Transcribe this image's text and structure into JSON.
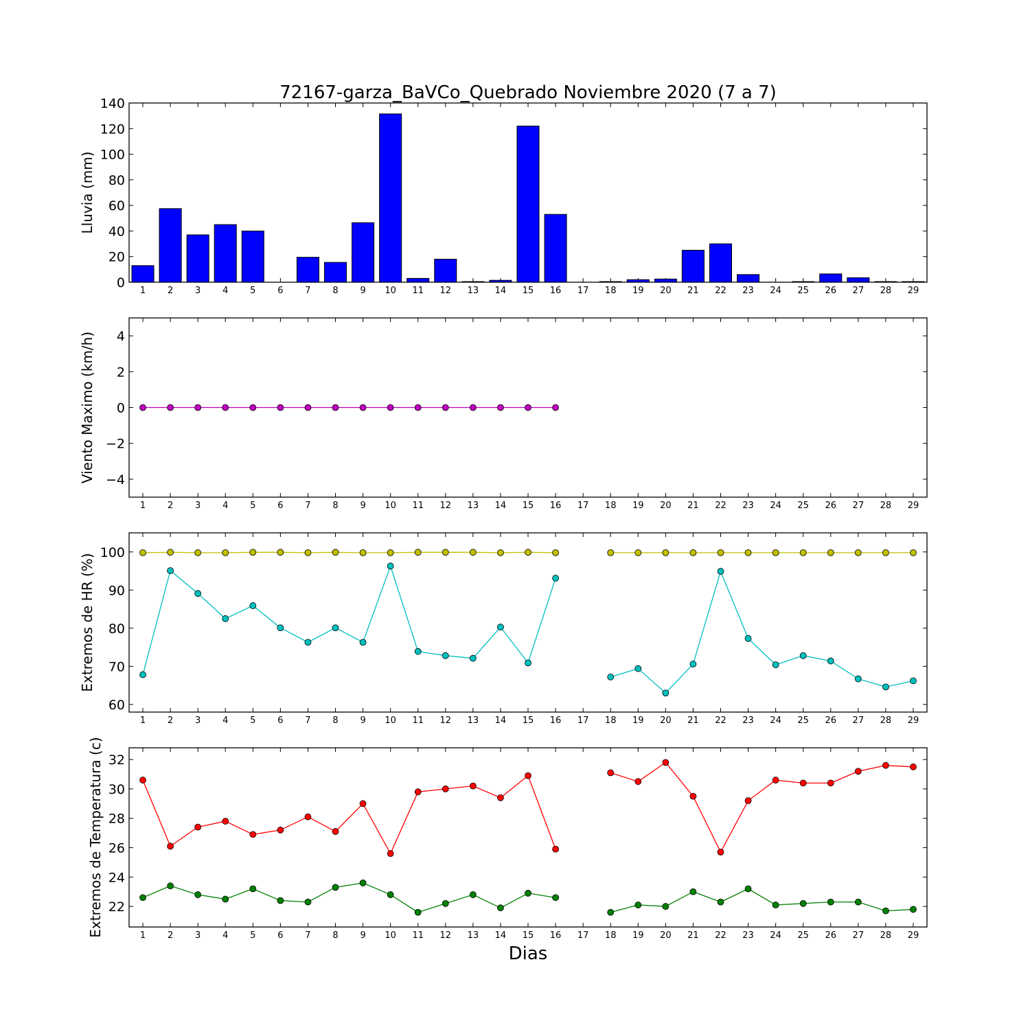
{
  "chart_data": {
    "title": "72167-garza_BaVCo_Quebrado Noviembre 2020  (7 a 7)",
    "xlabel": "Dias",
    "days": [
      1,
      2,
      3,
      4,
      5,
      6,
      7,
      8,
      9,
      10,
      11,
      12,
      13,
      14,
      15,
      16,
      17,
      18,
      19,
      20,
      21,
      22,
      23,
      24,
      25,
      26,
      27,
      28,
      29
    ],
    "panels": [
      {
        "type": "bar",
        "ylabel": "Lluvia (mm)",
        "ylim": [
          0,
          140
        ],
        "yticks": [
          0,
          20,
          40,
          60,
          80,
          100,
          120,
          140
        ],
        "colors": {
          "fill": "#0000ff"
        },
        "series": [
          {
            "values": [
              13,
              57.5,
              37,
              45,
              40,
              0,
              19.5,
              15.5,
              46.5,
              131.5,
              3,
              18,
              0.5,
              1.5,
              122,
              53,
              0,
              0.5,
              2,
              2.5,
              25,
              30,
              6,
              0,
              0.5,
              6.5,
              3.5,
              0.5,
              0.5
            ]
          }
        ]
      },
      {
        "type": "line",
        "ylabel": "Viento Maximo (km/h)",
        "ylim": [
          -5,
          5
        ],
        "yticks": [
          -4,
          -2,
          0,
          2,
          4
        ],
        "ytick_labels": [
          "−4",
          "−2",
          "0",
          "2",
          "4"
        ],
        "series": [
          {
            "color": "#bf00bf",
            "values": [
              0,
              0,
              0,
              0,
              0,
              0,
              0,
              0,
              0,
              0,
              0,
              0,
              0,
              0,
              0,
              0,
              null,
              null,
              null,
              null,
              null,
              null,
              null,
              null,
              null,
              null,
              null,
              null,
              null
            ]
          }
        ]
      },
      {
        "type": "line",
        "ylabel": "Extremos de HR (%)",
        "ylim": [
          58,
          105
        ],
        "yticks": [
          60,
          70,
          80,
          90,
          100
        ],
        "series": [
          {
            "color": "#bfbf00",
            "values": [
              99.8,
              99.9,
              99.8,
              99.8,
              99.9,
              99.9,
              99.8,
              99.9,
              99.8,
              99.8,
              99.9,
              99.9,
              99.9,
              99.8,
              99.9,
              99.8,
              null,
              99.8,
              99.8,
              99.8,
              99.8,
              99.8,
              99.8,
              99.8,
              99.8,
              99.8,
              99.8,
              99.8,
              99.8
            ]
          },
          {
            "color": "#00bfbf",
            "values": [
              67.8,
              95.1,
              89.1,
              82.5,
              85.9,
              80.1,
              76.3,
              80.1,
              76.3,
              96.3,
              73.9,
              72.8,
              72.1,
              80.3,
              70.9,
              93.1,
              null,
              67.2,
              69.4,
              63.0,
              70.6,
              94.9,
              77.3,
              70.4,
              72.8,
              71.4,
              66.7,
              64.6,
              66.2
            ]
          }
        ]
      },
      {
        "type": "line",
        "ylabel": "Extremos de Temperatura (c)",
        "ylim": [
          20.6,
          32.8
        ],
        "yticks": [
          22,
          24,
          26,
          28,
          30,
          32
        ],
        "series": [
          {
            "color": "#ff0000",
            "values": [
              30.6,
              26.1,
              27.4,
              27.8,
              26.9,
              27.2,
              28.1,
              27.1,
              29.0,
              25.6,
              29.8,
              30.0,
              30.2,
              29.4,
              30.9,
              25.9,
              null,
              31.1,
              30.5,
              31.8,
              29.5,
              25.7,
              29.2,
              30.6,
              30.4,
              30.4,
              31.2,
              31.6,
              31.5
            ]
          },
          {
            "color": "#008000",
            "values": [
              22.6,
              23.4,
              22.8,
              22.5,
              23.2,
              22.4,
              22.3,
              23.3,
              23.6,
              22.8,
              21.6,
              22.2,
              22.8,
              21.9,
              22.9,
              22.6,
              null,
              21.6,
              22.1,
              22.0,
              23.0,
              22.3,
              23.2,
              22.1,
              22.2,
              22.3,
              22.3,
              21.7,
              21.8
            ]
          }
        ]
      }
    ]
  }
}
